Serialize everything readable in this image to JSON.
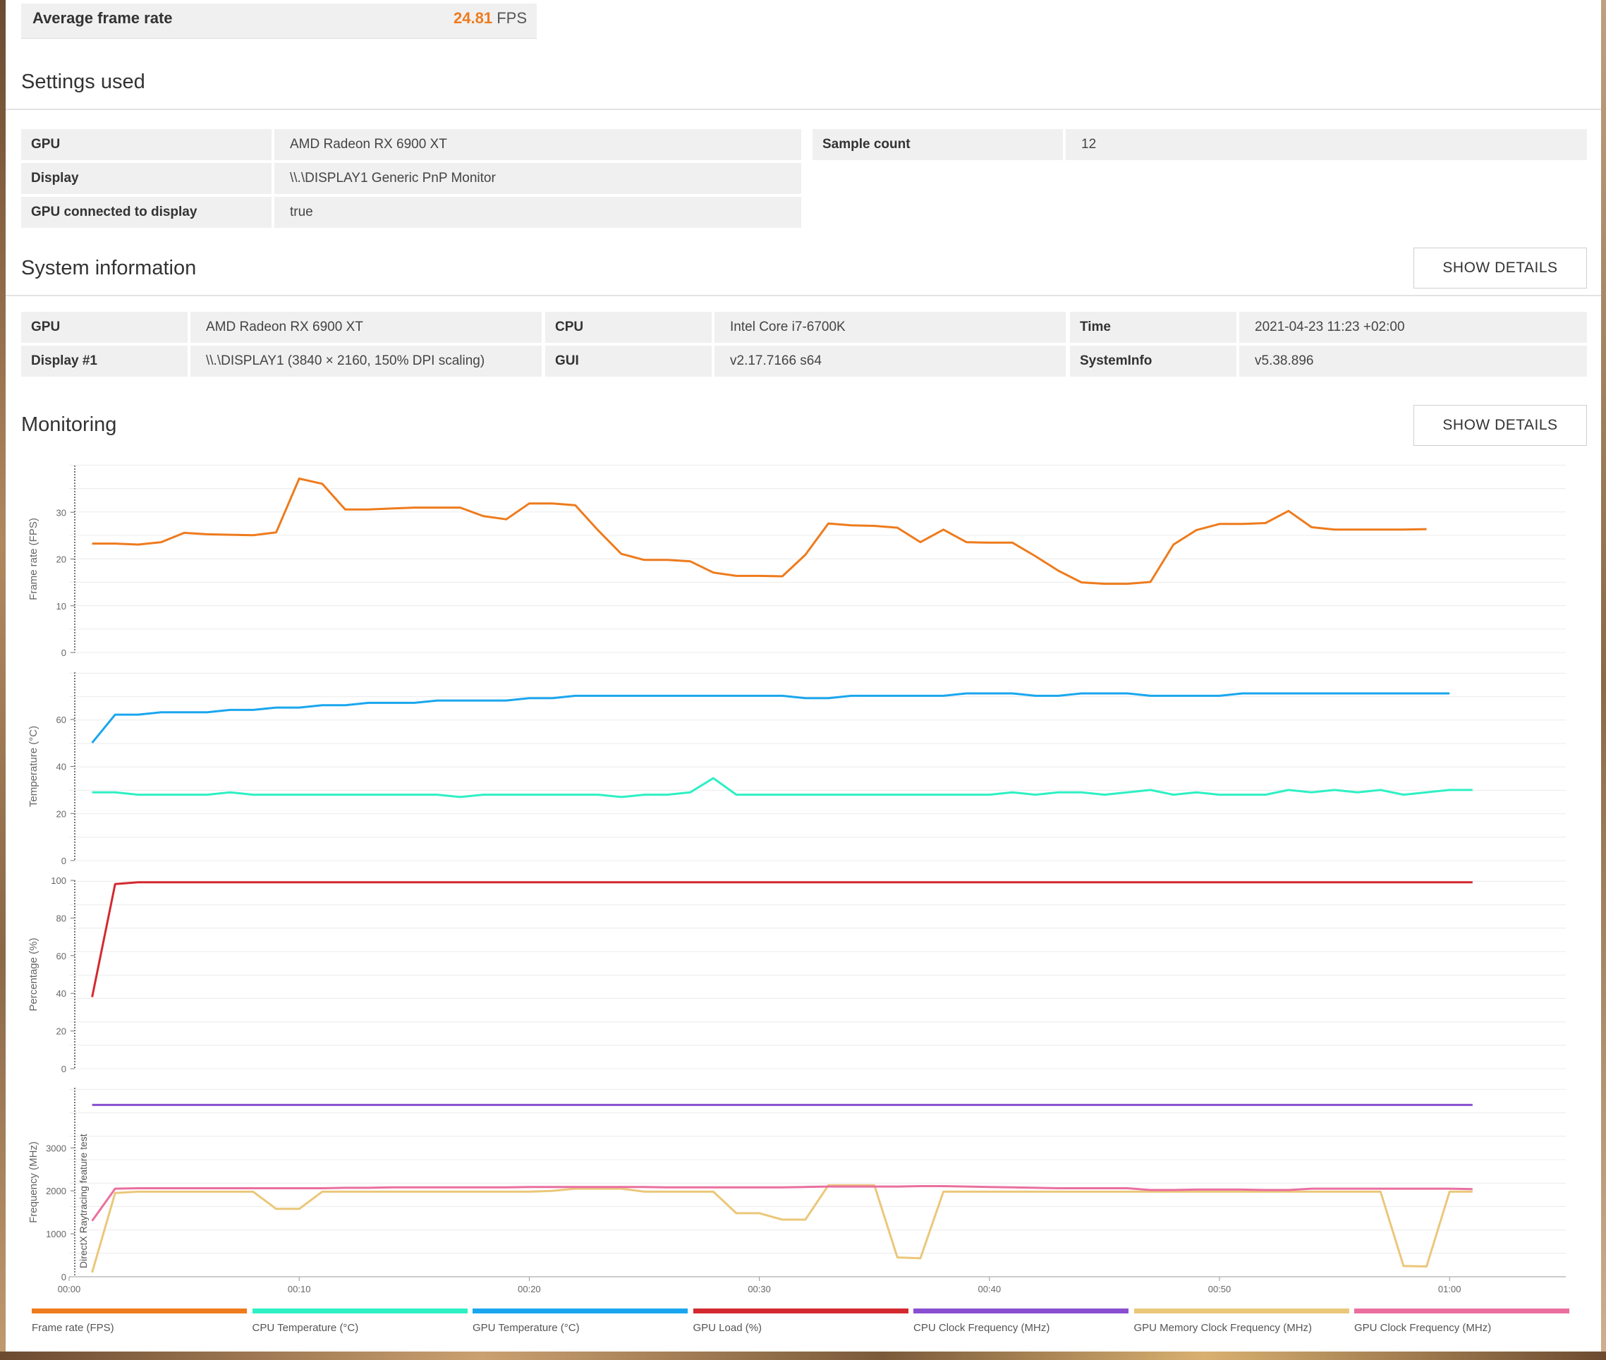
{
  "summary": {
    "label": "Average frame rate",
    "value": "24.81",
    "unit": "FPS"
  },
  "settings": {
    "title": "Settings used",
    "left": [
      {
        "key": "GPU",
        "value": "AMD Radeon RX 6900 XT"
      },
      {
        "key": "Display",
        "value": "\\\\.\\DISPLAY1 Generic PnP Monitor"
      },
      {
        "key": "GPU connected to display",
        "value": "true"
      }
    ],
    "right": [
      {
        "key": "Sample count",
        "value": "12"
      }
    ]
  },
  "system": {
    "title": "System information",
    "button": "SHOW DETAILS",
    "col1": [
      {
        "key": "GPU",
        "value": "AMD Radeon RX 6900 XT"
      },
      {
        "key": "Display #1",
        "value": "\\\\.\\DISPLAY1 (3840 × 2160, 150% DPI scaling)"
      }
    ],
    "col2": [
      {
        "key": "CPU",
        "value": "Intel Core i7-6700K"
      },
      {
        "key": "GUI",
        "value": "v2.17.7166 s64"
      }
    ],
    "col3": [
      {
        "key": "Time",
        "value": "2021-04-23 11:23 +02:00"
      },
      {
        "key": "SystemInfo",
        "value": "v5.38.896"
      }
    ]
  },
  "monitoring": {
    "title": "Monitoring",
    "button": "SHOW DETAILS"
  },
  "colors": {
    "fps": "#ee7b1d",
    "cpu_temp": "#2ef0c4",
    "gpu_temp": "#1aa6ee",
    "gpu_load": "#d3292f",
    "cpu_clock": "#8a4fd0",
    "gpu_mem_clock": "#ebc77a",
    "gpu_clock": "#ea6f9f"
  },
  "chart_data": {
    "type": "line",
    "x_ticks": [
      "00:00",
      "00:10",
      "00:20",
      "00:30",
      "00:40",
      "00:50",
      "01:00"
    ],
    "x_range_seconds": [
      0,
      65
    ],
    "annotation": "DirectX Raytracing feature test",
    "panels": [
      {
        "ylabel": "Frame rate (FPS)",
        "ylim": [
          0,
          40
        ],
        "yticks": [
          0,
          10,
          20,
          30
        ],
        "series": [
          {
            "name": "Frame rate (FPS)",
            "color_key": "fps",
            "values": [
              23.3,
              23.3,
              23.1,
              23.6,
              25.6,
              25.3,
              25.2,
              25.1,
              25.7,
              37.2,
              36.1,
              30.6,
              30.6,
              30.8,
              31.0,
              31.0,
              31.0,
              29.2,
              28.5,
              31.9,
              31.9,
              31.5,
              26.1,
              21.1,
              19.8,
              19.8,
              19.5,
              17.1,
              16.4,
              16.4,
              16.3,
              20.9,
              27.6,
              27.2,
              27.1,
              26.7,
              23.6,
              26.3,
              23.6,
              23.5,
              23.5,
              20.6,
              17.5,
              15.0,
              14.7,
              14.7,
              15.1,
              23.1,
              26.2,
              27.5,
              27.5,
              27.7,
              30.3,
              26.8,
              26.3,
              26.3,
              26.3,
              26.3,
              26.4
            ]
          }
        ]
      },
      {
        "ylabel": "Temperature (°C)",
        "ylim": [
          0,
          80
        ],
        "yticks": [
          0,
          20,
          40,
          60
        ],
        "series": [
          {
            "name": "GPU Temperature (°C)",
            "color_key": "gpu_temp",
            "values": [
              50,
              62,
              62,
              63,
              63,
              63,
              64,
              64,
              65,
              65,
              66,
              66,
              67,
              67,
              67,
              68,
              68,
              68,
              68,
              69,
              69,
              70,
              70,
              70,
              70,
              70,
              70,
              70,
              70,
              70,
              70,
              69,
              69,
              70,
              70,
              70,
              70,
              70,
              71,
              71,
              71,
              70,
              70,
              71,
              71,
              71,
              70,
              70,
              70,
              70,
              71,
              71,
              71,
              71,
              71,
              71,
              71,
              71,
              71,
              71
            ]
          },
          {
            "name": "CPU Temperature (°C)",
            "color_key": "cpu_temp",
            "values": [
              29,
              29,
              28,
              28,
              28,
              28,
              29,
              28,
              28,
              28,
              28,
              28,
              28,
              28,
              28,
              28,
              27,
              28,
              28,
              28,
              28,
              28,
              28,
              27,
              28,
              28,
              29,
              35,
              28,
              28,
              28,
              28,
              28,
              28,
              28,
              28,
              28,
              28,
              28,
              28,
              29,
              28,
              29,
              29,
              28,
              29,
              30,
              28,
              29,
              28,
              28,
              28,
              30,
              29,
              30,
              29,
              30,
              28,
              29,
              30,
              30
            ]
          }
        ]
      },
      {
        "ylabel": "Percentage (%)",
        "ylim": [
          0,
          100
        ],
        "yticks": [
          0,
          20,
          40,
          60,
          80,
          100
        ],
        "series": [
          {
            "name": "GPU Load (%)",
            "color_key": "gpu_load",
            "values": [
              38,
              98,
              99,
              99,
              99,
              99,
              99,
              99,
              99,
              99,
              99,
              99,
              99,
              99,
              99,
              99,
              99,
              99,
              99,
              99,
              99,
              99,
              99,
              99,
              99,
              99,
              99,
              99,
              99,
              99,
              99,
              99,
              99,
              99,
              99,
              99,
              99,
              99,
              99,
              99,
              99,
              99,
              99,
              99,
              99,
              99,
              99,
              99,
              99,
              99,
              99,
              99,
              99,
              99,
              99,
              99,
              99,
              99,
              99,
              99,
              99
            ]
          }
        ]
      },
      {
        "ylabel": "Frequency (MHz)",
        "ylim": [
          0,
          4400
        ],
        "yticks": [
          0,
          1000,
          2000,
          3000
        ],
        "series": [
          {
            "name": "CPU Clock Frequency (MHz)",
            "color_key": "cpu_clock",
            "values": [
              4000,
              4000,
              4000,
              4000,
              4000,
              4000,
              4000,
              4000,
              4000,
              4000,
              4000,
              4000,
              4000,
              4000,
              4000,
              4000,
              4000,
              4000,
              4000,
              4000,
              4000,
              4000,
              4000,
              4000,
              4000,
              4000,
              4000,
              4000,
              4000,
              4000,
              4000,
              4000,
              4000,
              4000,
              4000,
              4000,
              4000,
              4000,
              4000,
              4000,
              4000,
              4000,
              4000,
              4000,
              4000,
              4000,
              4000,
              4000,
              4000,
              4000,
              4000,
              4000,
              4000,
              4000,
              4000,
              4000,
              4000,
              4000,
              4000,
              4000,
              4000
            ]
          },
          {
            "name": "GPU Memory Clock Frequency (MHz)",
            "color_key": "gpu_mem_clock",
            "values": [
              100,
              1950,
              1980,
              1980,
              1980,
              1980,
              1980,
              1980,
              1580,
              1580,
              1980,
              1980,
              1980,
              1980,
              1980,
              1980,
              1980,
              1980,
              1980,
              1980,
              2000,
              2050,
              2050,
              2050,
              1980,
              1980,
              1980,
              1980,
              1480,
              1480,
              1330,
              1330,
              2130,
              2130,
              2130,
              450,
              430,
              1980,
              1980,
              1980,
              1980,
              1980,
              1980,
              1980,
              1980,
              1980,
              1980,
              1980,
              1980,
              1980,
              1980,
              1980,
              1980,
              1980,
              1980,
              1980,
              1980,
              250,
              240,
              1980,
              1980
            ]
          },
          {
            "name": "GPU Clock Frequency (MHz)",
            "color_key": "gpu_clock",
            "values": [
              1300,
              2050,
              2060,
              2060,
              2060,
              2060,
              2060,
              2060,
              2060,
              2060,
              2060,
              2070,
              2070,
              2080,
              2080,
              2080,
              2080,
              2080,
              2080,
              2090,
              2090,
              2090,
              2090,
              2090,
              2090,
              2080,
              2080,
              2080,
              2080,
              2080,
              2080,
              2090,
              2100,
              2100,
              2100,
              2100,
              2110,
              2110,
              2100,
              2090,
              2080,
              2070,
              2060,
              2060,
              2060,
              2060,
              2020,
              2020,
              2030,
              2030,
              2030,
              2020,
              2020,
              2050,
              2050,
              2050,
              2050,
              2050,
              2050,
              2050,
              2040
            ]
          }
        ]
      }
    ],
    "legend": [
      {
        "name": "Frame rate (FPS)",
        "color_key": "fps"
      },
      {
        "name": "CPU Temperature (°C)",
        "color_key": "cpu_temp"
      },
      {
        "name": "GPU Temperature (°C)",
        "color_key": "gpu_temp"
      },
      {
        "name": "GPU Load (%)",
        "color_key": "gpu_load"
      },
      {
        "name": "CPU Clock Frequency (MHz)",
        "color_key": "cpu_clock"
      },
      {
        "name": "GPU Memory Clock Frequency (MHz)",
        "color_key": "gpu_mem_clock"
      },
      {
        "name": "GPU Clock Frequency (MHz)",
        "color_key": "gpu_clock"
      }
    ]
  }
}
